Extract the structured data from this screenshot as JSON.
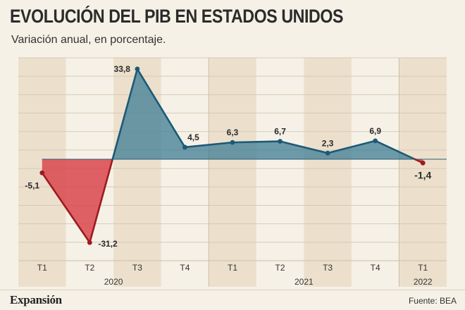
{
  "header": {
    "title": "EVOLUCIÓN DEL PIB EN ESTADOS UNIDOS",
    "subtitle": "Variación anual, en porcentaje."
  },
  "footer": {
    "brand": "Expansión",
    "source": "Fuente: BEA"
  },
  "colors": {
    "background": "#f6f1e7",
    "band": "#ece0cd",
    "positive_line": "#1b5a77",
    "positive_fill": "#3f7c93",
    "negative_line": "#9d1b20",
    "negative_fill": "#d9474c"
  },
  "chart_data": {
    "type": "area",
    "title": "EVOLUCIÓN DEL PIB EN ESTADOS UNIDOS",
    "subtitle": "Variación anual, en porcentaje.",
    "categories": [
      "T1",
      "T2",
      "T3",
      "T4",
      "T1",
      "T2",
      "T3",
      "T4",
      "T1"
    ],
    "years": [
      {
        "label": "2020",
        "start": 0,
        "end": 3
      },
      {
        "label": "2021",
        "start": 4,
        "end": 7
      },
      {
        "label": "2022",
        "start": 8,
        "end": 8
      }
    ],
    "values": [
      -5.1,
      -31.2,
      33.8,
      4.5,
      6.3,
      6.7,
      2.3,
      6.9,
      -1.4
    ],
    "labels": [
      "-5,1",
      "-31,2",
      "33,8",
      "4,5",
      "6,3",
      "6,7",
      "2,3",
      "6,9",
      "-1,4"
    ],
    "ylim": [
      -38,
      38
    ],
    "grid": true,
    "source": "Fuente: BEA"
  }
}
